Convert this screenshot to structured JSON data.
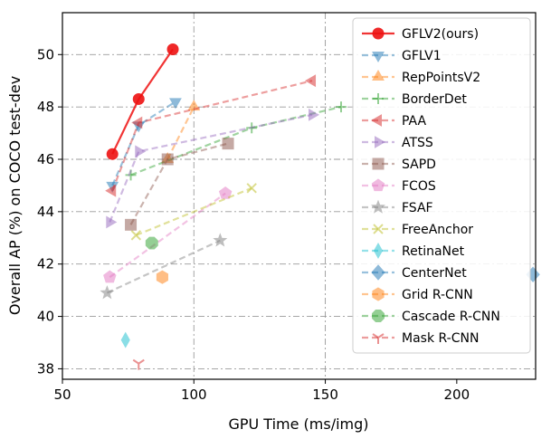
{
  "chart_data": {
    "type": "line",
    "title": "",
    "xlabel": "GPU Time (ms/img)",
    "ylabel": "Overall AP (%) on COCO test-dev",
    "xlim": [
      50,
      230
    ],
    "ylim": [
      37.6,
      51.6
    ],
    "xticks": [
      50,
      100,
      150,
      200
    ],
    "yticks": [
      38,
      40,
      42,
      44,
      46,
      48,
      50
    ],
    "grid": true,
    "grid_lines_x": [
      100,
      150
    ],
    "legend_position": "top-right",
    "series": [
      {
        "name": "GFLV2(ours)",
        "color": "#ee1111",
        "marker": "circle",
        "alpha": 1.0,
        "x": [
          69,
          79,
          92
        ],
        "y": [
          46.2,
          48.3,
          50.2
        ]
      },
      {
        "name": "GFLV1",
        "color": "#1f77b4",
        "marker": "triangle-down",
        "alpha": 0.5,
        "x": [
          69,
          79,
          93
        ],
        "y": [
          45.0,
          47.3,
          48.2
        ]
      },
      {
        "name": "RepPointsV2",
        "color": "#ff7f0e",
        "marker": "triangle-up",
        "alpha": 0.5,
        "x": [
          90,
          100
        ],
        "y": [
          46.0,
          48.0
        ]
      },
      {
        "name": "BorderDet",
        "color": "#2ca02c",
        "marker": "plus",
        "alpha": 0.5,
        "x": [
          76,
          122,
          156
        ],
        "y": [
          45.4,
          47.2,
          48.0
        ]
      },
      {
        "name": "PAA",
        "color": "#d62728",
        "marker": "triangle-left",
        "alpha": 0.5,
        "x": [
          69,
          79,
          145
        ],
        "y": [
          44.8,
          47.4,
          49.0
        ]
      },
      {
        "name": "ATSS",
        "color": "#9467bd",
        "marker": "triangle-right",
        "alpha": 0.5,
        "x": [
          68,
          79,
          145
        ],
        "y": [
          43.6,
          46.3,
          47.7
        ]
      },
      {
        "name": "SAPD",
        "color": "#8c564b",
        "marker": "square",
        "alpha": 0.5,
        "x": [
          76,
          90,
          113
        ],
        "y": [
          43.5,
          46.0,
          46.6
        ]
      },
      {
        "name": "FCOS",
        "color": "#e377c2",
        "marker": "pentagon",
        "alpha": 0.5,
        "x": [
          68,
          112
        ],
        "y": [
          41.5,
          44.7
        ]
      },
      {
        "name": "FSAF",
        "color": "#7f7f7f",
        "marker": "star",
        "alpha": 0.5,
        "x": [
          67,
          110
        ],
        "y": [
          40.9,
          42.9
        ]
      },
      {
        "name": "FreeAnchor",
        "color": "#bcbd22",
        "marker": "x",
        "alpha": 0.5,
        "x": [
          78,
          122
        ],
        "y": [
          43.1,
          44.9
        ]
      },
      {
        "name": "RetinaNet",
        "color": "#17becf",
        "marker": "thin-diamond",
        "alpha": 0.5,
        "x": [
          74
        ],
        "y": [
          39.1
        ]
      },
      {
        "name": "CenterNet",
        "color": "#1f77b4",
        "marker": "diamond",
        "alpha": 0.5,
        "x": [
          229
        ],
        "y": [
          41.6
        ]
      },
      {
        "name": "Grid R-CNN",
        "color": "#ff7f0e",
        "marker": "hexagon",
        "alpha": 0.5,
        "x": [
          88
        ],
        "y": [
          41.5
        ]
      },
      {
        "name": "Cascade R-CNN",
        "color": "#2ca02c",
        "marker": "octagon",
        "alpha": 0.5,
        "x": [
          84
        ],
        "y": [
          42.8
        ]
      },
      {
        "name": "Mask R-CNN",
        "color": "#d62728",
        "marker": "tri-down",
        "alpha": 0.5,
        "x": [
          79
        ],
        "y": [
          38.2
        ]
      }
    ]
  }
}
